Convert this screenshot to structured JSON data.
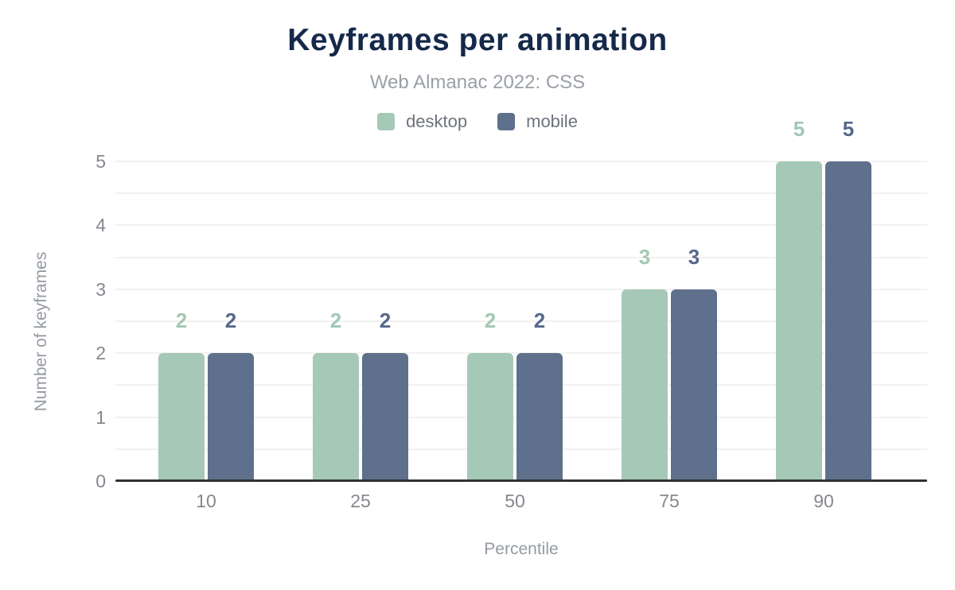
{
  "chart_data": {
    "type": "bar",
    "title": "Keyframes per animation",
    "subtitle": "Web Almanac 2022: CSS",
    "xlabel": "Percentile",
    "ylabel": "Number of keyframes",
    "categories": [
      "10",
      "25",
      "50",
      "75",
      "90"
    ],
    "series": [
      {
        "name": "desktop",
        "color": "#a6c9b7",
        "value_label_color": "#a3c7b4",
        "values": [
          2,
          2,
          2,
          3,
          5
        ]
      },
      {
        "name": "mobile",
        "color": "#5f708c",
        "value_label_color": "#566889",
        "values": [
          2,
          2,
          2,
          3,
          5
        ]
      }
    ],
    "ylim": [
      0,
      5
    ],
    "yticks": [
      0,
      1,
      2,
      3,
      4,
      5
    ],
    "grid_step": 0.5,
    "grid_on": true,
    "legend_position": "top"
  },
  "colors": {
    "title": "#15294a",
    "subtitle": "#9aa0a7",
    "legend_text": "#6e737c",
    "tick_text": "#84888f",
    "axis_title_text": "#959aa3",
    "gridline": "#f1f1f2",
    "baseline": "#303134",
    "background": "#ffffff"
  }
}
